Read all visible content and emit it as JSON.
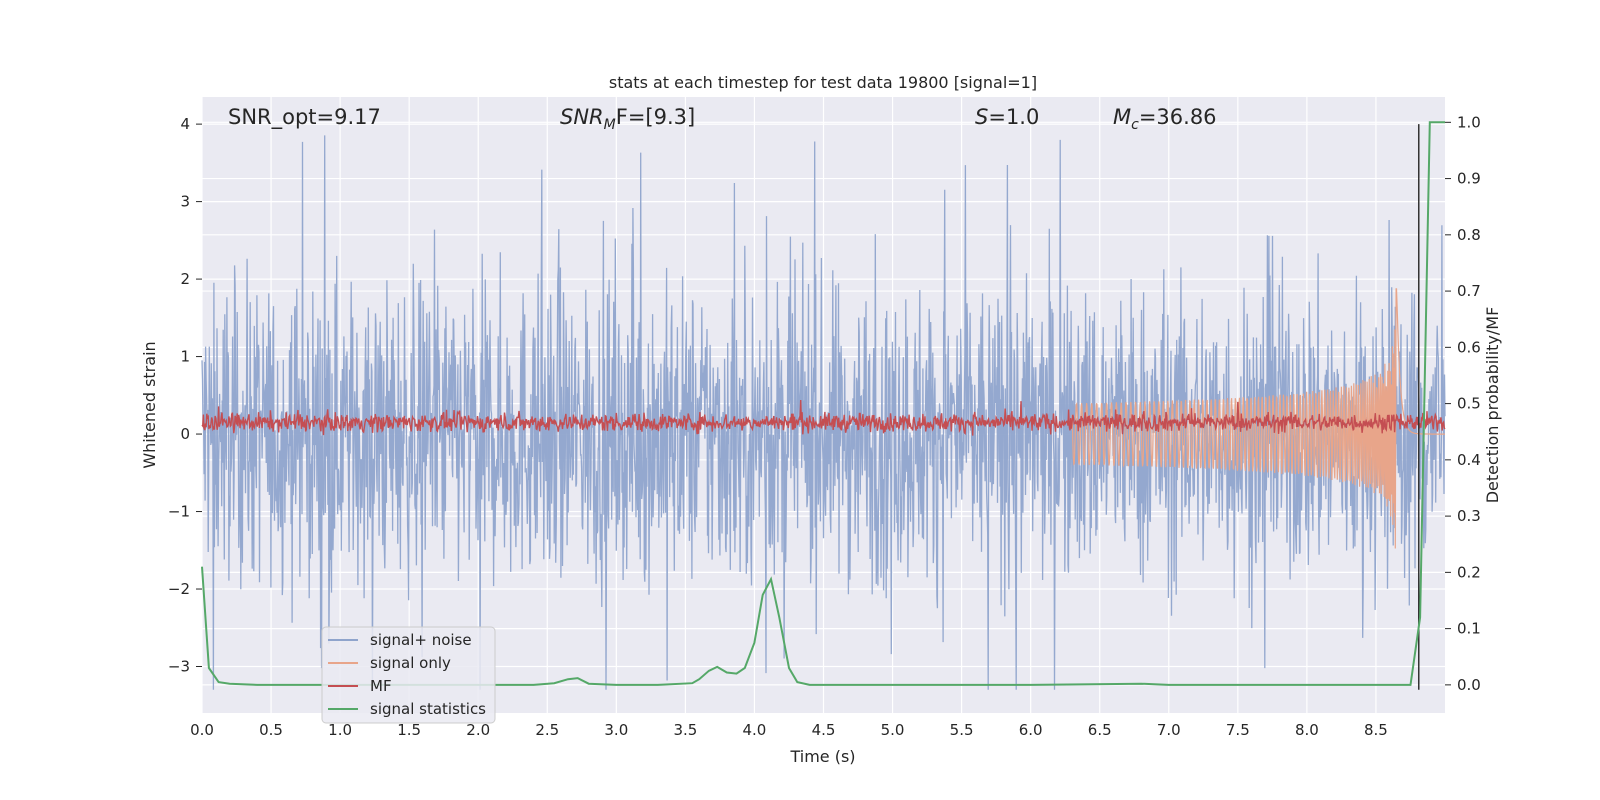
{
  "chart_data": {
    "type": "line",
    "title": "stats at each timestep for test data 19800 [signal=1]",
    "xlabel": "Time (s)",
    "ylabel": "Whitened strain",
    "y2label": "Detection probability/MF",
    "xlim": [
      0.0,
      9.0
    ],
    "ylim": [
      -3.6,
      4.35
    ],
    "y2lim": [
      -0.05,
      1.045
    ],
    "xticks": [
      "0.0",
      "0.5",
      "1.0",
      "1.5",
      "2.0",
      "2.5",
      "3.0",
      "3.5",
      "4.0",
      "4.5",
      "5.0",
      "5.5",
      "6.0",
      "6.5",
      "7.0",
      "7.5",
      "8.0",
      "8.5"
    ],
    "xtick_values": [
      0.0,
      0.5,
      1.0,
      1.5,
      2.0,
      2.5,
      3.0,
      3.5,
      4.0,
      4.5,
      5.0,
      5.5,
      6.0,
      6.5,
      7.0,
      7.5,
      8.0,
      8.5
    ],
    "yticks": [
      "4",
      "3",
      "2",
      "1",
      "0",
      "−1",
      "−2",
      "−3"
    ],
    "ytick_values": [
      4,
      3,
      2,
      1,
      0,
      -1,
      -2,
      -3
    ],
    "y2ticks": [
      "1.0",
      "0.9",
      "0.8",
      "0.7",
      "0.6",
      "0.5",
      "0.4",
      "0.3",
      "0.2",
      "0.1",
      "0.0"
    ],
    "y2tick_values": [
      1.0,
      0.9,
      0.8,
      0.7,
      0.6,
      0.5,
      0.4,
      0.3,
      0.2,
      0.1,
      0.0
    ],
    "annotations": {
      "snr_opt": "SNR_opt=9.17",
      "snr_mf_main": "SNR",
      "snr_mf_sub": "M",
      "snr_mf_rest": "F=[9.3]",
      "s_main": "S",
      "s_rest": "=1.0",
      "mc_main": "M",
      "mc_sub": "c",
      "mc_rest": "=36.86"
    },
    "series": [
      {
        "name": "signal+ noise",
        "color": "#8fa4cc",
        "axis": "left",
        "description": "noise band approx ±1.2 with peaks to ±4"
      },
      {
        "name": "signal only",
        "color": "#e8a58a",
        "axis": "left",
        "description": "chirp growing toward merger at ~8.65s, peak amplitude ~1.95"
      },
      {
        "name": "MF",
        "color": "#c44e52",
        "axis": "left",
        "description": "band around 0.15"
      },
      {
        "name": "signal statistics",
        "color": "#55a868",
        "axis": "right",
        "x": [
          0.0,
          0.05,
          0.12,
          0.2,
          0.4,
          0.8,
          1.2,
          1.6,
          2.0,
          2.4,
          2.55,
          2.65,
          2.72,
          2.8,
          3.0,
          3.3,
          3.55,
          3.6,
          3.67,
          3.73,
          3.8,
          3.87,
          3.93,
          4.0,
          4.06,
          4.12,
          4.18,
          4.25,
          4.31,
          4.4,
          5.0,
          6.0,
          6.8,
          7.0,
          8.0,
          8.5,
          8.75,
          8.82,
          8.89,
          8.95,
          9.0
        ],
        "y": [
          0.21,
          0.03,
          0.005,
          0.002,
          0.0,
          0.0,
          0.0,
          0.0,
          0.0,
          0.0,
          0.003,
          0.01,
          0.012,
          0.002,
          0.0,
          0.0,
          0.003,
          0.01,
          0.025,
          0.032,
          0.022,
          0.02,
          0.03,
          0.075,
          0.16,
          0.188,
          0.12,
          0.03,
          0.005,
          0.0,
          0.0,
          0.0,
          0.002,
          0.0,
          0.0,
          0.0,
          0.0,
          0.12,
          1.0,
          1.0,
          1.0
        ]
      },
      {
        "name": "merger marker",
        "color": "#333333",
        "axis": "left",
        "x": [
          8.81,
          8.81
        ],
        "y": [
          -3.3,
          4.0
        ]
      }
    ],
    "legend": {
      "position": "lower-left",
      "entries": [
        "signal+ noise",
        "signal only",
        "MF",
        "signal statistics"
      ]
    }
  }
}
